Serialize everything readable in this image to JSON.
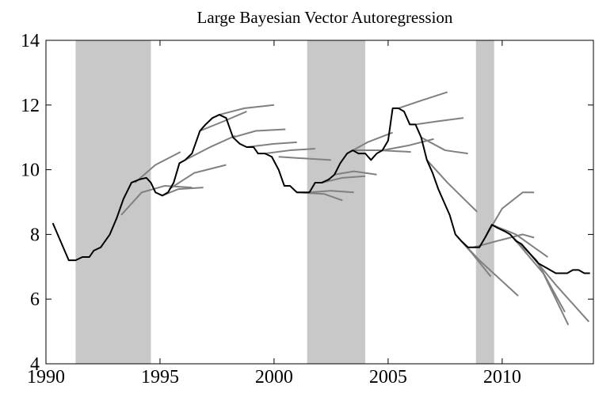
{
  "chart_data": {
    "type": "line",
    "title": "Large Bayesian Vector Autoregression",
    "xlim": [
      1990,
      2014
    ],
    "ylim": [
      4,
      14
    ],
    "xticks": [
      1990,
      1995,
      2000,
      2005,
      2010
    ],
    "yticks": [
      4,
      6,
      8,
      10,
      12,
      14
    ],
    "shade_color": "#c8c8c8",
    "shaded_regions": [
      {
        "start": 1991.3,
        "end": 1994.6
      },
      {
        "start": 2001.45,
        "end": 2004.0
      },
      {
        "start": 2008.85,
        "end": 2009.65
      }
    ],
    "series": [
      {
        "color": "#808080",
        "x": [
          1993.9,
          1994.8,
          1995.9
        ],
        "values": [
          9.6,
          10.15,
          10.55
        ]
      },
      {
        "color": "#808080",
        "x": [
          1993.3,
          1994.2,
          1995.2,
          1996.4
        ],
        "values": [
          8.6,
          9.3,
          9.5,
          9.45
        ]
      },
      {
        "color": "#808080",
        "x": [
          1995.1,
          1995.8,
          1996.9
        ],
        "values": [
          9.2,
          9.4,
          9.45
        ]
      },
      {
        "color": "#808080",
        "x": [
          1995.4,
          1996.5,
          1997.9
        ],
        "values": [
          9.4,
          9.9,
          10.15
        ]
      },
      {
        "color": "#808080",
        "x": [
          1996.1,
          1997.2,
          1998.3
        ],
        "values": [
          10.3,
          10.7,
          11.05
        ]
      },
      {
        "color": "#808080",
        "x": [
          1996.75,
          1997.8,
          1998.8
        ],
        "values": [
          11.2,
          11.5,
          11.8
        ]
      },
      {
        "color": "#808080",
        "x": [
          1997.6,
          1998.7,
          2000.0
        ],
        "values": [
          11.7,
          11.9,
          12.0
        ]
      },
      {
        "color": "#808080",
        "x": [
          1998.2,
          1999.2,
          2000.5
        ],
        "values": [
          11.0,
          11.2,
          11.25
        ]
      },
      {
        "color": "#808080",
        "x": [
          1998.8,
          2000.0,
          2001.0
        ],
        "values": [
          10.7,
          10.8,
          10.85
        ]
      },
      {
        "color": "#808080",
        "x": [
          1999.6,
          2000.7,
          2001.8
        ],
        "values": [
          10.5,
          10.6,
          10.65
        ]
      },
      {
        "color": "#808080",
        "x": [
          2000.2,
          2001.3,
          2002.5
        ],
        "values": [
          10.4,
          10.35,
          10.3
        ]
      },
      {
        "color": "#808080",
        "x": [
          2001.0,
          2002.2,
          2003.0
        ],
        "values": [
          9.3,
          9.25,
          9.05
        ]
      },
      {
        "color": "#808080",
        "x": [
          2001.55,
          2002.5,
          2003.5
        ],
        "values": [
          9.3,
          9.35,
          9.3
        ]
      },
      {
        "color": "#808080",
        "x": [
          2002.1,
          2003.0,
          2004.0
        ],
        "values": [
          9.6,
          9.75,
          9.8
        ]
      },
      {
        "color": "#808080",
        "x": [
          2002.65,
          2003.5,
          2004.5
        ],
        "values": [
          9.85,
          9.95,
          9.85
        ]
      },
      {
        "color": "#808080",
        "x": [
          2003.2,
          2004.1,
          2005.2
        ],
        "values": [
          10.5,
          10.85,
          11.15
        ]
      },
      {
        "color": "#808080",
        "x": [
          2003.45,
          2004.6,
          2006.0
        ],
        "values": [
          10.6,
          10.6,
          10.55
        ]
      },
      {
        "color": "#808080",
        "x": [
          2004.75,
          2005.9,
          2007.0
        ],
        "values": [
          10.6,
          10.75,
          10.95
        ]
      },
      {
        "color": "#808080",
        "x": [
          2005.45,
          2006.5,
          2007.6
        ],
        "values": [
          11.9,
          12.15,
          12.4
        ]
      },
      {
        "color": "#808080",
        "x": [
          2006.2,
          2007.2,
          2008.3
        ],
        "values": [
          11.4,
          11.5,
          11.6
        ]
      },
      {
        "color": "#808080",
        "x": [
          2006.45,
          2007.5,
          2008.5
        ],
        "values": [
          11.0,
          10.6,
          10.5
        ]
      },
      {
        "color": "#808080",
        "x": [
          2006.7,
          2007.6,
          2008.9
        ],
        "values": [
          10.3,
          9.6,
          8.7
        ]
      },
      {
        "color": "#808080",
        "x": [
          2007.95,
          2008.7,
          2009.5
        ],
        "values": [
          8.0,
          7.4,
          6.7
        ]
      },
      {
        "color": "#808080",
        "x": [
          2008.2,
          2009.0,
          2010.7
        ],
        "values": [
          7.8,
          7.2,
          6.1
        ]
      },
      {
        "color": "#808080",
        "x": [
          2008.75,
          2009.8,
          2010.9,
          2011.4
        ],
        "values": [
          7.6,
          7.8,
          8.0,
          7.9
        ]
      },
      {
        "color": "#808080",
        "x": [
          2009.25,
          2010.0,
          2010.9,
          2011.4
        ],
        "values": [
          7.9,
          8.8,
          9.3,
          9.3
        ]
      },
      {
        "color": "#808080",
        "x": [
          2009.55,
          2010.6,
          2011.4,
          2012.0
        ],
        "values": [
          8.3,
          8.0,
          7.6,
          7.3
        ]
      },
      {
        "color": "#808080",
        "x": [
          2010.35,
          2011.5,
          2012.75
        ],
        "values": [
          8.0,
          7.2,
          5.6
        ]
      },
      {
        "color": "#808080",
        "x": [
          2010.6,
          2011.8,
          2012.9
        ],
        "values": [
          7.8,
          6.8,
          5.2
        ]
      },
      {
        "color": "#808080",
        "x": [
          2011.1,
          2012.4,
          2013.8
        ],
        "values": [
          7.5,
          6.4,
          5.3
        ]
      },
      {
        "color": "#000000",
        "x": [
          1990.3,
          1991.0,
          1991.3,
          1991.6,
          1991.9,
          1992.1,
          1992.4,
          1992.8,
          1993.1,
          1993.4,
          1993.75,
          1994.1,
          1994.4,
          1994.6,
          1994.8,
          1995.1,
          1995.35,
          1995.6,
          1995.85,
          1996.1,
          1996.4,
          1996.75,
          1997.0,
          1997.3,
          1997.6,
          1997.9,
          1998.2,
          1998.5,
          1998.8,
          1999.1,
          1999.3,
          1999.6,
          1999.9,
          2000.2,
          2000.45,
          2000.7,
          2001.0,
          2001.3,
          2001.55,
          2001.8,
          2002.1,
          2002.4,
          2002.65,
          2002.9,
          2003.2,
          2003.45,
          2003.7,
          2004.0,
          2004.25,
          2004.5,
          2004.75,
          2005.0,
          2005.2,
          2005.45,
          2005.7,
          2005.95,
          2006.2,
          2006.45,
          2006.7,
          2006.95,
          2007.2,
          2007.45,
          2007.7,
          2007.95,
          2008.2,
          2008.5,
          2008.75,
          2009.0,
          2009.25,
          2009.55,
          2009.8,
          2010.1,
          2010.35,
          2010.6,
          2010.85,
          2011.1,
          2011.35,
          2011.6,
          2011.85,
          2012.1,
          2012.35,
          2012.6,
          2012.85,
          2013.1,
          2013.35,
          2013.6,
          2013.85
        ],
        "values": [
          8.35,
          7.2,
          7.2,
          7.3,
          7.3,
          7.5,
          7.6,
          8.0,
          8.5,
          9.1,
          9.6,
          9.7,
          9.75,
          9.6,
          9.3,
          9.2,
          9.3,
          9.6,
          10.2,
          10.3,
          10.5,
          11.2,
          11.4,
          11.6,
          11.7,
          11.6,
          11.0,
          10.8,
          10.7,
          10.7,
          10.5,
          10.5,
          10.4,
          10.0,
          9.5,
          9.5,
          9.3,
          9.3,
          9.3,
          9.6,
          9.6,
          9.7,
          9.85,
          10.2,
          10.5,
          10.6,
          10.5,
          10.5,
          10.3,
          10.5,
          10.6,
          10.9,
          11.9,
          11.9,
          11.8,
          11.4,
          11.4,
          11.0,
          10.3,
          9.9,
          9.4,
          9.0,
          8.6,
          8.0,
          7.8,
          7.6,
          7.6,
          7.6,
          7.9,
          8.3,
          8.2,
          8.1,
          8.0,
          7.8,
          7.7,
          7.5,
          7.3,
          7.1,
          7.0,
          6.9,
          6.8,
          6.8,
          6.8,
          6.9,
          6.9,
          6.8,
          6.8
        ]
      }
    ]
  }
}
